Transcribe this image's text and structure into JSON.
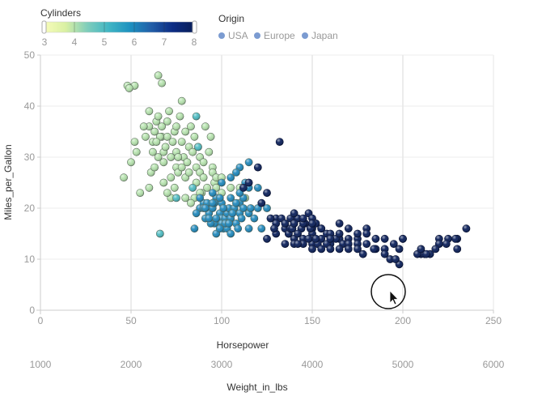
{
  "chart_data": {
    "type": "scatter",
    "color_legend": {
      "title": "Cylinders",
      "min": 3,
      "max": 8,
      "ticks": [
        "3",
        "4",
        "5",
        "6",
        "7",
        "8"
      ],
      "colors": [
        "#f7fcb9",
        "#d9f0a3",
        "#7fcdbb",
        "#41b6c4",
        "#1d91c0",
        "#225ea8",
        "#0c2c84",
        "#081d58"
      ]
    },
    "origin_legend": {
      "title": "Origin",
      "items": [
        {
          "label": "USA",
          "color": "#7b9bd1"
        },
        {
          "label": "Europe",
          "color": "#7b9bd1"
        },
        {
          "label": "Japan",
          "color": "#7b9bd1"
        }
      ]
    },
    "x_axis": {
      "label": "Horsepower",
      "ticks": [
        "0",
        "50",
        "100",
        "150",
        "200",
        "250"
      ],
      "range": [
        0,
        250
      ]
    },
    "x2_axis": {
      "label": "Weight_in_lbs",
      "ticks": [
        "1000",
        "2000",
        "3000",
        "4000",
        "5000",
        "6000"
      ],
      "range": [
        1000,
        6000
      ]
    },
    "y_axis": {
      "label": "Miles_per_Gallon",
      "ticks": [
        "0",
        "10",
        "20",
        "30",
        "40",
        "50"
      ],
      "range": [
        0,
        50
      ]
    },
    "points": [
      [
        48,
        44,
        4
      ],
      [
        52,
        44,
        4
      ],
      [
        49,
        43.5,
        4
      ],
      [
        46,
        26,
        4
      ],
      [
        50,
        29,
        4
      ],
      [
        52,
        33,
        4
      ],
      [
        53,
        31,
        4
      ],
      [
        55,
        23,
        4
      ],
      [
        60,
        36,
        4
      ],
      [
        60,
        39,
        4
      ],
      [
        60,
        24,
        4
      ],
      [
        61,
        27,
        4
      ],
      [
        62,
        33,
        4
      ],
      [
        63,
        35,
        4
      ],
      [
        64,
        37,
        4
      ],
      [
        65,
        38,
        4
      ],
      [
        65,
        46,
        4
      ],
      [
        67,
        44.5,
        4
      ],
      [
        65,
        30,
        4
      ],
      [
        67,
        34,
        4
      ],
      [
        67,
        36,
        4
      ],
      [
        68,
        31,
        4
      ],
      [
        68,
        29,
        4
      ],
      [
        69,
        32,
        4
      ],
      [
        70,
        34,
        4
      ],
      [
        70,
        37,
        4
      ],
      [
        71,
        39,
        4
      ],
      [
        72,
        30,
        4
      ],
      [
        72,
        26,
        4
      ],
      [
        73,
        33,
        4
      ],
      [
        74,
        35,
        4
      ],
      [
        75,
        36,
        4
      ],
      [
        75,
        31,
        4
      ],
      [
        75,
        28,
        4
      ],
      [
        76,
        27,
        4
      ],
      [
        77,
        38,
        4
      ],
      [
        78,
        33,
        4
      ],
      [
        78,
        41,
        4
      ],
      [
        79,
        30,
        4
      ],
      [
        80,
        35,
        4
      ],
      [
        80,
        26,
        4
      ],
      [
        81,
        29,
        4
      ],
      [
        82,
        32,
        4
      ],
      [
        83,
        36,
        4
      ],
      [
        84,
        31,
        4
      ],
      [
        85,
        34,
        4
      ],
      [
        86,
        28,
        4
      ],
      [
        86,
        25,
        4
      ],
      [
        87,
        32,
        4
      ],
      [
        88,
        27,
        4
      ],
      [
        88,
        30,
        4
      ],
      [
        89,
        23,
        4
      ],
      [
        90,
        26,
        4
      ],
      [
        90,
        29,
        4
      ],
      [
        91,
        36,
        4
      ],
      [
        92,
        24,
        4
      ],
      [
        93,
        31,
        4
      ],
      [
        94,
        34,
        4
      ],
      [
        95,
        28,
        4
      ],
      [
        95,
        27,
        4
      ],
      [
        96,
        25,
        4
      ],
      [
        97,
        26,
        4
      ],
      [
        97,
        24,
        4
      ],
      [
        100,
        26,
        4
      ],
      [
        100,
        23,
        4
      ],
      [
        105,
        24,
        4
      ],
      [
        110,
        24,
        4
      ],
      [
        113,
        22,
        4
      ],
      [
        88,
        23,
        4
      ],
      [
        85,
        22,
        4
      ],
      [
        83,
        21,
        4
      ],
      [
        80,
        22,
        4
      ],
      [
        78,
        28,
        4
      ],
      [
        76,
        30,
        4
      ],
      [
        74,
        24,
        4
      ],
      [
        72,
        22,
        4
      ],
      [
        70,
        23,
        4
      ],
      [
        68,
        25,
        4
      ],
      [
        66,
        34,
        4
      ],
      [
        64,
        33,
        4
      ],
      [
        62,
        31,
        4
      ],
      [
        58,
        34,
        4
      ],
      [
        57,
        36,
        4
      ],
      [
        63,
        28,
        4
      ],
      [
        82,
        27,
        4
      ],
      [
        86,
        38,
        5
      ],
      [
        87,
        32,
        5
      ],
      [
        75,
        22,
        5
      ],
      [
        66,
        15,
        5
      ],
      [
        84,
        24,
        5
      ],
      [
        88,
        20,
        6
      ],
      [
        90,
        21,
        6
      ],
      [
        91,
        18,
        6
      ],
      [
        93,
        19,
        6
      ],
      [
        95,
        20,
        6
      ],
      [
        96,
        17,
        6
      ],
      [
        97,
        22,
        6
      ],
      [
        98,
        18,
        6
      ],
      [
        99,
        19,
        6
      ],
      [
        100,
        18,
        6
      ],
      [
        100,
        21,
        6
      ],
      [
        100,
        17,
        6
      ],
      [
        101,
        16,
        6
      ],
      [
        102,
        18,
        6
      ],
      [
        103,
        19,
        6
      ],
      [
        104,
        20,
        6
      ],
      [
        105,
        22,
        6
      ],
      [
        105,
        18,
        6
      ],
      [
        107,
        20,
        6
      ],
      [
        108,
        17,
        6
      ],
      [
        110,
        19,
        6
      ],
      [
        110,
        21,
        6
      ],
      [
        112,
        20,
        6
      ],
      [
        112,
        22,
        6
      ],
      [
        115,
        19,
        6
      ],
      [
        115,
        16,
        6
      ],
      [
        116,
        20,
        6
      ],
      [
        118,
        18,
        6
      ],
      [
        120,
        20,
        6
      ],
      [
        122,
        16,
        6
      ],
      [
        85,
        16,
        6
      ],
      [
        86,
        19,
        6
      ],
      [
        88,
        22,
        6
      ],
      [
        90,
        20,
        6
      ],
      [
        92,
        21,
        6
      ],
      [
        94,
        17,
        6
      ],
      [
        96,
        21,
        6
      ],
      [
        97,
        15,
        6
      ],
      [
        99,
        22,
        6
      ],
      [
        101,
        20,
        6
      ],
      [
        103,
        16,
        6
      ],
      [
        105,
        15,
        6
      ],
      [
        108,
        21,
        6
      ],
      [
        110,
        23,
        6
      ],
      [
        113,
        25,
        6
      ],
      [
        115,
        24,
        6
      ],
      [
        95,
        23,
        6
      ],
      [
        110,
        28,
        6
      ],
      [
        105,
        26,
        6
      ],
      [
        108,
        27,
        6
      ],
      [
        115,
        29,
        6
      ],
      [
        120,
        24,
        6
      ],
      [
        125,
        20,
        6
      ],
      [
        100,
        25,
        6
      ],
      [
        95,
        21,
        6
      ],
      [
        91,
        20,
        6
      ],
      [
        93,
        18,
        6
      ],
      [
        97,
        18,
        6
      ],
      [
        99,
        16,
        6
      ],
      [
        102,
        17,
        6
      ],
      [
        104,
        17,
        6
      ],
      [
        106,
        19,
        6
      ],
      [
        109,
        16,
        6
      ],
      [
        111,
        18,
        6
      ],
      [
        132,
        33,
        8
      ],
      [
        115,
        25,
        8
      ],
      [
        120,
        28,
        8
      ],
      [
        125,
        23,
        8
      ],
      [
        130,
        18,
        8
      ],
      [
        130,
        17,
        8
      ],
      [
        135,
        16,
        8
      ],
      [
        137,
        15,
        8
      ],
      [
        138,
        18,
        8
      ],
      [
        140,
        17,
        8
      ],
      [
        140,
        14,
        8
      ],
      [
        142,
        18,
        8
      ],
      [
        144,
        16,
        8
      ],
      [
        145,
        14,
        8
      ],
      [
        146,
        17,
        8
      ],
      [
        148,
        19,
        8
      ],
      [
        150,
        18,
        8
      ],
      [
        150,
        16,
        8
      ],
      [
        150,
        15,
        8
      ],
      [
        150,
        14,
        8
      ],
      [
        152,
        17,
        8
      ],
      [
        153,
        13,
        8
      ],
      [
        155,
        16,
        8
      ],
      [
        155,
        14,
        8
      ],
      [
        158,
        15,
        8
      ],
      [
        160,
        13,
        8
      ],
      [
        160,
        15,
        8
      ],
      [
        165,
        17,
        8
      ],
      [
        165,
        14,
        8
      ],
      [
        167,
        13,
        8
      ],
      [
        170,
        14,
        8
      ],
      [
        170,
        16,
        8
      ],
      [
        175,
        14,
        8
      ],
      [
        175,
        13,
        8
      ],
      [
        180,
        13,
        8
      ],
      [
        180,
        16,
        8
      ],
      [
        185,
        12,
        8
      ],
      [
        190,
        12,
        8
      ],
      [
        190,
        14,
        8
      ],
      [
        193,
        10,
        8
      ],
      [
        198,
        9,
        8
      ],
      [
        200,
        14,
        8
      ],
      [
        210,
        11,
        8
      ],
      [
        215,
        11,
        8
      ],
      [
        220,
        14,
        8
      ],
      [
        220,
        13,
        8
      ],
      [
        225,
        14,
        8
      ],
      [
        230,
        14,
        8
      ],
      [
        230,
        12,
        8
      ],
      [
        235,
        16,
        8
      ],
      [
        208,
        11,
        8
      ],
      [
        212,
        11,
        8
      ],
      [
        198,
        12,
        8
      ],
      [
        150,
        13,
        8
      ],
      [
        153,
        13,
        8
      ],
      [
        145,
        13,
        8
      ],
      [
        140,
        13,
        8
      ],
      [
        137,
        15,
        8
      ],
      [
        158,
        13,
        8
      ],
      [
        163,
        14,
        8
      ],
      [
        148,
        14,
        8
      ],
      [
        135,
        13,
        8
      ],
      [
        130,
        15,
        8
      ],
      [
        125,
        14,
        8
      ],
      [
        129,
        16,
        8
      ],
      [
        133,
        18,
        8
      ],
      [
        138,
        16,
        8
      ],
      [
        142,
        15,
        8
      ],
      [
        149,
        16,
        8
      ],
      [
        152,
        14,
        8
      ],
      [
        170,
        13,
        8
      ],
      [
        175,
        15,
        8
      ],
      [
        180,
        15,
        8
      ],
      [
        185,
        14,
        8
      ],
      [
        195,
        13,
        8
      ],
      [
        200,
        14,
        8
      ],
      [
        210,
        12,
        8
      ],
      [
        220,
        13,
        8
      ],
      [
        165,
        15,
        8
      ],
      [
        155,
        16,
        8
      ],
      [
        145,
        17,
        8
      ],
      [
        139,
        16,
        8
      ],
      [
        142,
        13,
        8
      ],
      [
        150,
        12,
        8
      ],
      [
        160,
        12,
        8
      ],
      [
        178,
        11,
        8
      ],
      [
        184,
        12,
        8
      ],
      [
        190,
        11,
        8
      ],
      [
        196,
        10,
        8
      ],
      [
        213,
        11,
        8
      ],
      [
        218,
        12,
        8
      ],
      [
        224,
        13,
        8
      ],
      [
        229,
        14,
        8
      ],
      [
        175,
        12,
        8
      ],
      [
        140,
        19,
        8
      ],
      [
        145,
        18,
        8
      ],
      [
        150,
        17,
        8
      ],
      [
        155,
        12,
        8
      ],
      [
        160,
        14,
        8
      ],
      [
        165,
        12,
        8
      ],
      [
        170,
        12,
        8
      ],
      [
        112,
        24,
        8
      ],
      [
        122,
        21,
        8
      ],
      [
        127,
        18,
        8
      ],
      [
        135,
        17,
        8
      ],
      [
        140,
        17,
        8
      ]
    ]
  }
}
